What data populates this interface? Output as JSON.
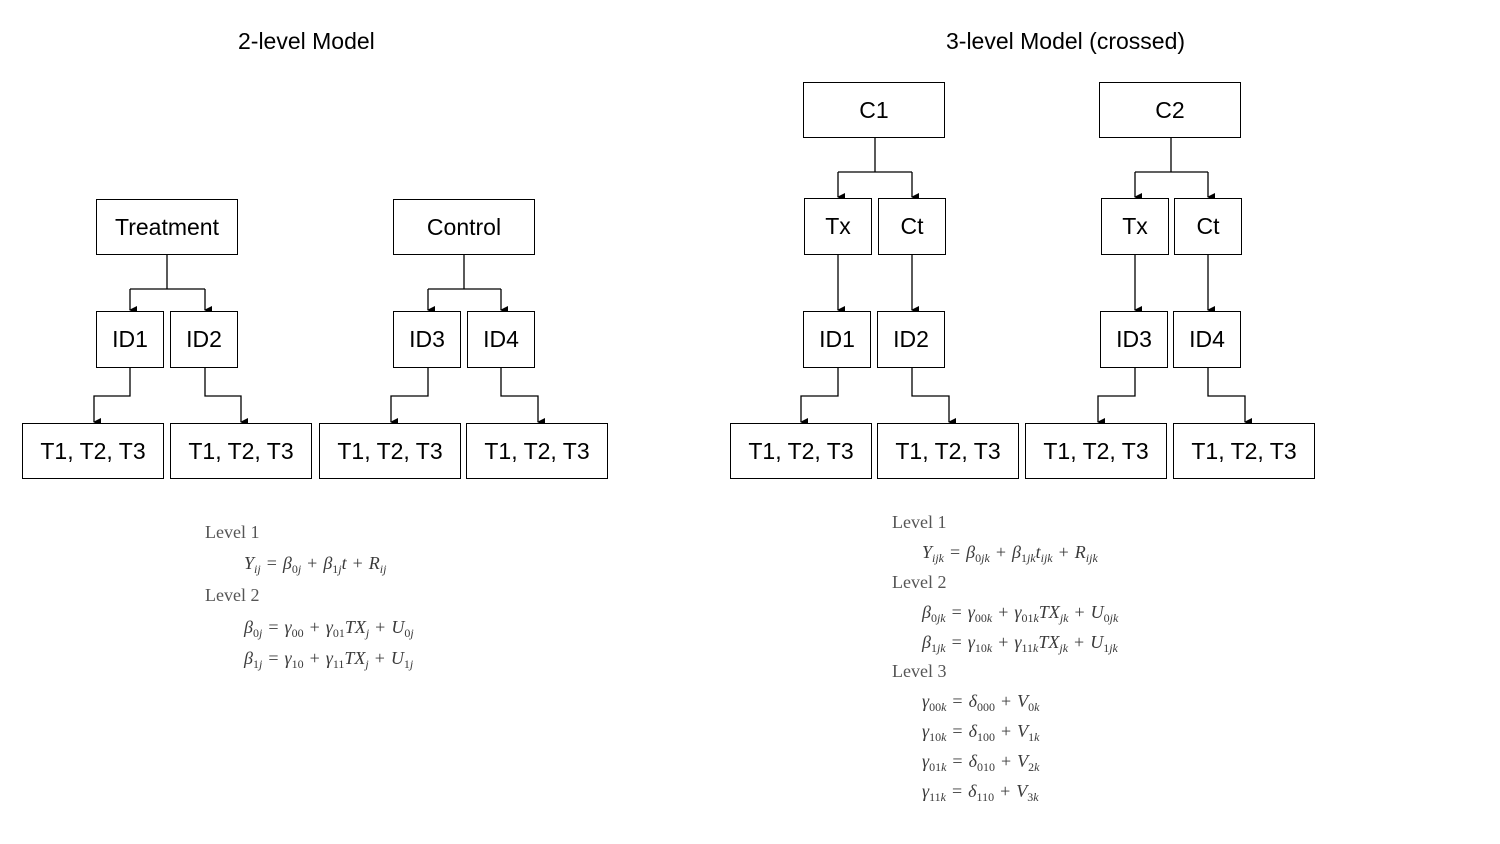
{
  "left": {
    "title": "2-level Model",
    "groups": [
      "Treatment",
      "Control"
    ],
    "ids": [
      "ID1",
      "ID2",
      "ID3",
      "ID4"
    ],
    "times": [
      "T1, T2, T3",
      "T1, T2, T3",
      "T1, T2, T3",
      "T1, T2, T3"
    ],
    "equations": {
      "level1_label": "Level 1",
      "level2_label": "Level 2"
    }
  },
  "right": {
    "title": "3-level Model (crossed)",
    "clusters": [
      "C1",
      "C2"
    ],
    "conditions": [
      "Tx",
      "Ct",
      "Tx",
      "Ct"
    ],
    "ids": [
      "ID1",
      "ID2",
      "ID3",
      "ID4"
    ],
    "times": [
      "T1, T2, T3",
      "T1, T2, T3",
      "T1, T2, T3",
      "T1, T2, T3"
    ],
    "equations": {
      "level1_label": "Level 1",
      "level2_label": "Level 2",
      "level3_label": "Level 3"
    }
  }
}
